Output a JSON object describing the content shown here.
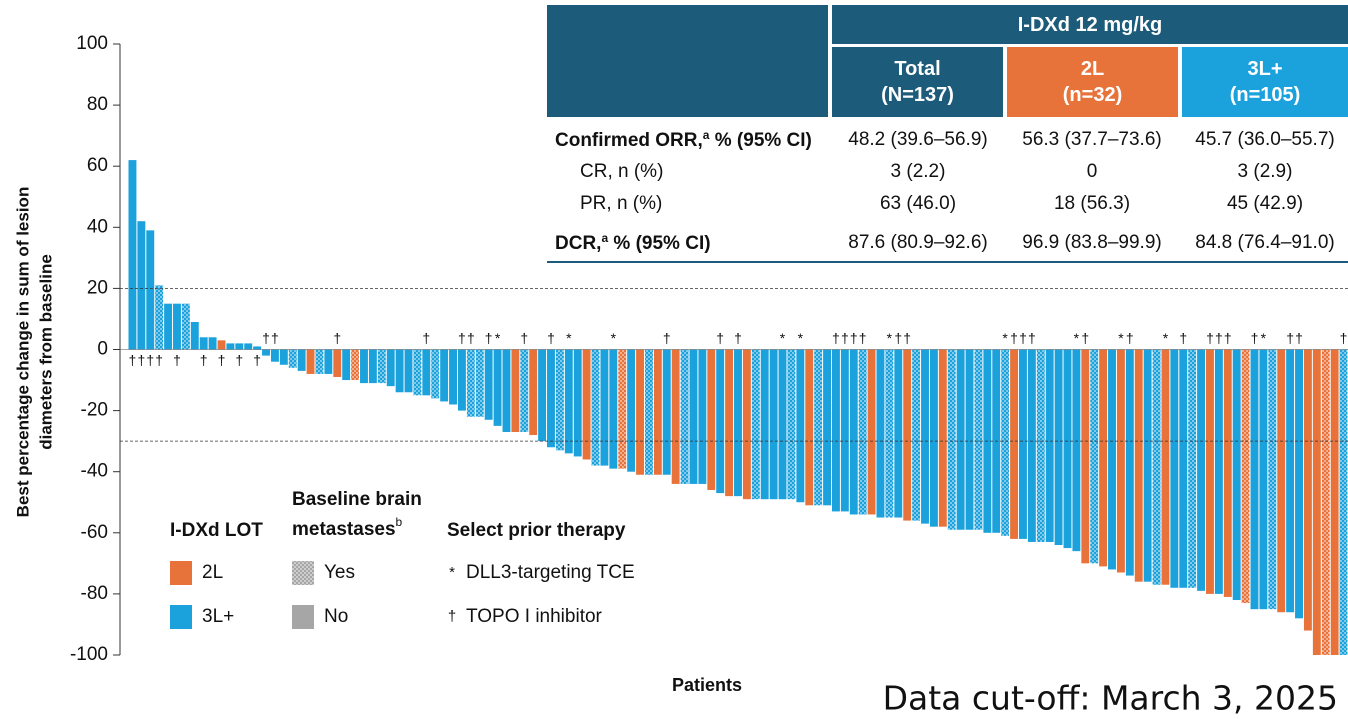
{
  "chart_data": {
    "type": "waterfall",
    "ylabel": [
      "Best percentage change in sum of lesion",
      "diameters from baseline"
    ],
    "xlabel": "Patients",
    "ylim": [
      -100,
      100
    ],
    "yticks": [
      -100,
      -80,
      -60,
      -40,
      -20,
      0,
      20,
      40,
      60,
      80,
      100
    ],
    "reference_lines": [
      20,
      -30
    ],
    "values": [
      62,
      42,
      39,
      21,
      15,
      15,
      15,
      9,
      4,
      4,
      3,
      2,
      2,
      2,
      1,
      -2,
      -4,
      -5,
      -6,
      -7,
      -8,
      -8,
      -8,
      -9,
      -10,
      -10,
      -11,
      -11,
      -11,
      -12,
      -14,
      -14,
      -15,
      -15,
      -16,
      -17,
      -18,
      -20,
      -22,
      -22,
      -23,
      -25,
      -27,
      -27,
      -27,
      -28,
      -30,
      -32,
      -33,
      -34,
      -35,
      -36,
      -38,
      -38,
      -39,
      -39,
      -40,
      -41,
      -41,
      -41,
      -41,
      -44,
      -44,
      -44,
      -44,
      -46,
      -47,
      -48,
      -48,
      -49,
      -49,
      -49,
      -49,
      -49,
      -49,
      -50,
      -51,
      -51,
      -51,
      -53,
      -53,
      -54,
      -54,
      -54,
      -55,
      -55,
      -55,
      -56,
      -56,
      -57,
      -58,
      -58,
      -59,
      -59,
      -59,
      -59,
      -60,
      -60,
      -61,
      -62,
      -62,
      -63,
      -63,
      -63,
      -64,
      -65,
      -66,
      -70,
      -70,
      -71,
      -72,
      -73,
      -74,
      -76,
      -76,
      -77,
      -77,
      -78,
      -78,
      -78,
      -79,
      -80,
      -80,
      -81,
      -82,
      -83,
      -85,
      -85,
      -85,
      -86,
      -86,
      -88,
      -92,
      -100,
      -100,
      -100,
      -100
    ],
    "lot": [
      "3L+",
      "3L+",
      "3L+",
      "3L+",
      "3L+",
      "3L+",
      "3L+",
      "3L+",
      "3L+",
      "3L+",
      "2L",
      "3L+",
      "3L+",
      "3L+",
      "3L+",
      "3L+",
      "3L+",
      "3L+",
      "3L+",
      "3L+",
      "2L",
      "3L+",
      "3L+",
      "2L",
      "3L+",
      "2L",
      "3L+",
      "3L+",
      "3L+",
      "3L+",
      "3L+",
      "3L+",
      "3L+",
      "3L+",
      "3L+",
      "3L+",
      "3L+",
      "3L+",
      "3L+",
      "3L+",
      "3L+",
      "3L+",
      "3L+",
      "2L",
      "3L+",
      "2L",
      "3L+",
      "3L+",
      "3L+",
      "3L+",
      "3L+",
      "2L",
      "3L+",
      "3L+",
      "3L+",
      "2L",
      "3L+",
      "2L",
      "3L+",
      "2L",
      "3L+",
      "2L",
      "3L+",
      "3L+",
      "3L+",
      "2L",
      "3L+",
      "2L",
      "3L+",
      "2L",
      "3L+",
      "3L+",
      "3L+",
      "3L+",
      "3L+",
      "3L+",
      "2L",
      "3L+",
      "3L+",
      "3L+",
      "3L+",
      "3L+",
      "3L+",
      "2L",
      "3L+",
      "3L+",
      "3L+",
      "2L",
      "3L+",
      "3L+",
      "3L+",
      "2L",
      "3L+",
      "3L+",
      "3L+",
      "3L+",
      "3L+",
      "3L+",
      "3L+",
      "2L",
      "3L+",
      "3L+",
      "3L+",
      "3L+",
      "3L+",
      "3L+",
      "3L+",
      "2L",
      "3L+",
      "2L",
      "3L+",
      "2L",
      "3L+",
      "2L",
      "3L+",
      "3L+",
      "2L",
      "3L+",
      "3L+",
      "3L+",
      "3L+",
      "2L",
      "3L+",
      "2L",
      "3L+",
      "2L",
      "3L+",
      "3L+",
      "3L+",
      "2L",
      "3L+",
      "3L+",
      "2L",
      "2L",
      "2L",
      "2L",
      "3L+"
    ],
    "brain_mets": [
      "No",
      "No",
      "No",
      "Yes",
      "No",
      "No",
      "Yes",
      "No",
      "No",
      "No",
      "No",
      "No",
      "No",
      "No",
      "No",
      "No",
      "No",
      "No",
      "Yes",
      "No",
      "No",
      "Yes",
      "No",
      "No",
      "No",
      "Yes",
      "No",
      "No",
      "Yes",
      "No",
      "No",
      "No",
      "Yes",
      "No",
      "Yes",
      "No",
      "No",
      "No",
      "Yes",
      "Yes",
      "No",
      "No",
      "No",
      "No",
      "Yes",
      "No",
      "No",
      "No",
      "Yes",
      "No",
      "No",
      "No",
      "Yes",
      "No",
      "No",
      "Yes",
      "No",
      "No",
      "Yes",
      "No",
      "No",
      "No",
      "Yes",
      "No",
      "No",
      "No",
      "No",
      "No",
      "No",
      "No",
      "Yes",
      "No",
      "No",
      "No",
      "Yes",
      "No",
      "No",
      "Yes",
      "No",
      "No",
      "No",
      "No",
      "Yes",
      "No",
      "No",
      "Yes",
      "No",
      "No",
      "Yes",
      "No",
      "No",
      "No",
      "Yes",
      "No",
      "No",
      "Yes",
      "No",
      "No",
      "Yes",
      "No",
      "No",
      "No",
      "Yes",
      "No",
      "No",
      "No",
      "No",
      "No",
      "Yes",
      "No",
      "No",
      "No",
      "No",
      "No",
      "No",
      "Yes",
      "No",
      "No",
      "No",
      "Yes",
      "No",
      "No",
      "No",
      "No",
      "No",
      "Yes",
      "No",
      "No",
      "Yes",
      "No",
      "No",
      "No",
      "No",
      "No",
      "Yes",
      "No",
      "Yes"
    ],
    "symbols": [
      "†",
      "†",
      "†",
      "†",
      null,
      "†",
      null,
      null,
      "†",
      null,
      "†",
      null,
      "†",
      null,
      "†",
      "†",
      "†",
      null,
      null,
      null,
      null,
      null,
      null,
      "†",
      null,
      null,
      null,
      null,
      null,
      null,
      null,
      null,
      null,
      "†",
      null,
      null,
      null,
      "†",
      "†",
      null,
      "†",
      "*",
      null,
      null,
      "†",
      null,
      null,
      "†",
      null,
      "*",
      null,
      null,
      null,
      null,
      "*",
      null,
      null,
      null,
      null,
      null,
      "†",
      null,
      null,
      null,
      null,
      null,
      "†",
      null,
      "†",
      null,
      null,
      null,
      null,
      "*",
      null,
      "*",
      null,
      null,
      null,
      "†",
      "†",
      "†",
      "†",
      null,
      null,
      "*",
      "†",
      "†",
      null,
      null,
      null,
      null,
      null,
      null,
      null,
      null,
      null,
      null,
      "*",
      "†",
      "†",
      "†",
      null,
      null,
      null,
      null,
      "*",
      "†",
      null,
      null,
      null,
      "*",
      "†",
      null,
      null,
      null,
      "*",
      null,
      "†",
      null,
      null,
      "†",
      "†",
      "†",
      null,
      null,
      "†",
      "*",
      null,
      null,
      "†",
      "†",
      null,
      null,
      null,
      null,
      "†"
    ],
    "legend": {
      "lot_title": "I-DXd LOT",
      "lot": [
        {
          "name": "2L",
          "color": "#e8733a"
        },
        {
          "name": "3L+",
          "color": "#1ba1dc"
        }
      ],
      "brain_title": [
        "Baseline brain",
        "metastases"
      ],
      "brain_title_sup": "b",
      "brain": [
        {
          "name": "Yes",
          "color": "#a6a6a6",
          "patterned": true
        },
        {
          "name": "No",
          "color": "#a6a6a6",
          "patterned": false
        }
      ],
      "therapy_title": "Select prior therapy",
      "therapy": [
        {
          "symbol": "*",
          "name": "DLL3-targeting TCE"
        },
        {
          "symbol": "†",
          "name": "TOPO I inhibitor"
        }
      ]
    },
    "footnote": "Data cut-off: March 3, 2025"
  },
  "table": {
    "group_header": "I-DXd 12 mg/kg",
    "header_color": "#1d5b7a",
    "columns": [
      {
        "name": "Total",
        "n": "(N=137)",
        "color": "#1d5b7a"
      },
      {
        "name": "2L",
        "n": "(n=32)",
        "color": "#e8733a"
      },
      {
        "name": "3L+",
        "n": "(n=105)",
        "color": "#1ba1dc"
      }
    ],
    "rows": [
      {
        "label": "Confirmed ORR,",
        "sup": "a",
        "label_rest": " % (95% CI)",
        "cells": [
          "48.2 (39.6–56.9)",
          "56.3 (37.7–73.6)",
          "45.7 (36.0–55.7)"
        ]
      },
      {
        "label": "CR, n (%)",
        "cells": [
          "3 (2.2)",
          "0",
          "3 (2.9)"
        ]
      },
      {
        "label": "PR, n (%)",
        "cells": [
          "63 (46.0)",
          "18 (56.3)",
          "45 (42.9)"
        ]
      },
      {
        "label": "DCR,",
        "sup": "a",
        "label_rest": " % (95% CI)",
        "cells": [
          "87.6 (80.9–92.6)",
          "96.9 (83.8–99.9)",
          "84.8 (76.4–91.0)"
        ]
      }
    ]
  }
}
